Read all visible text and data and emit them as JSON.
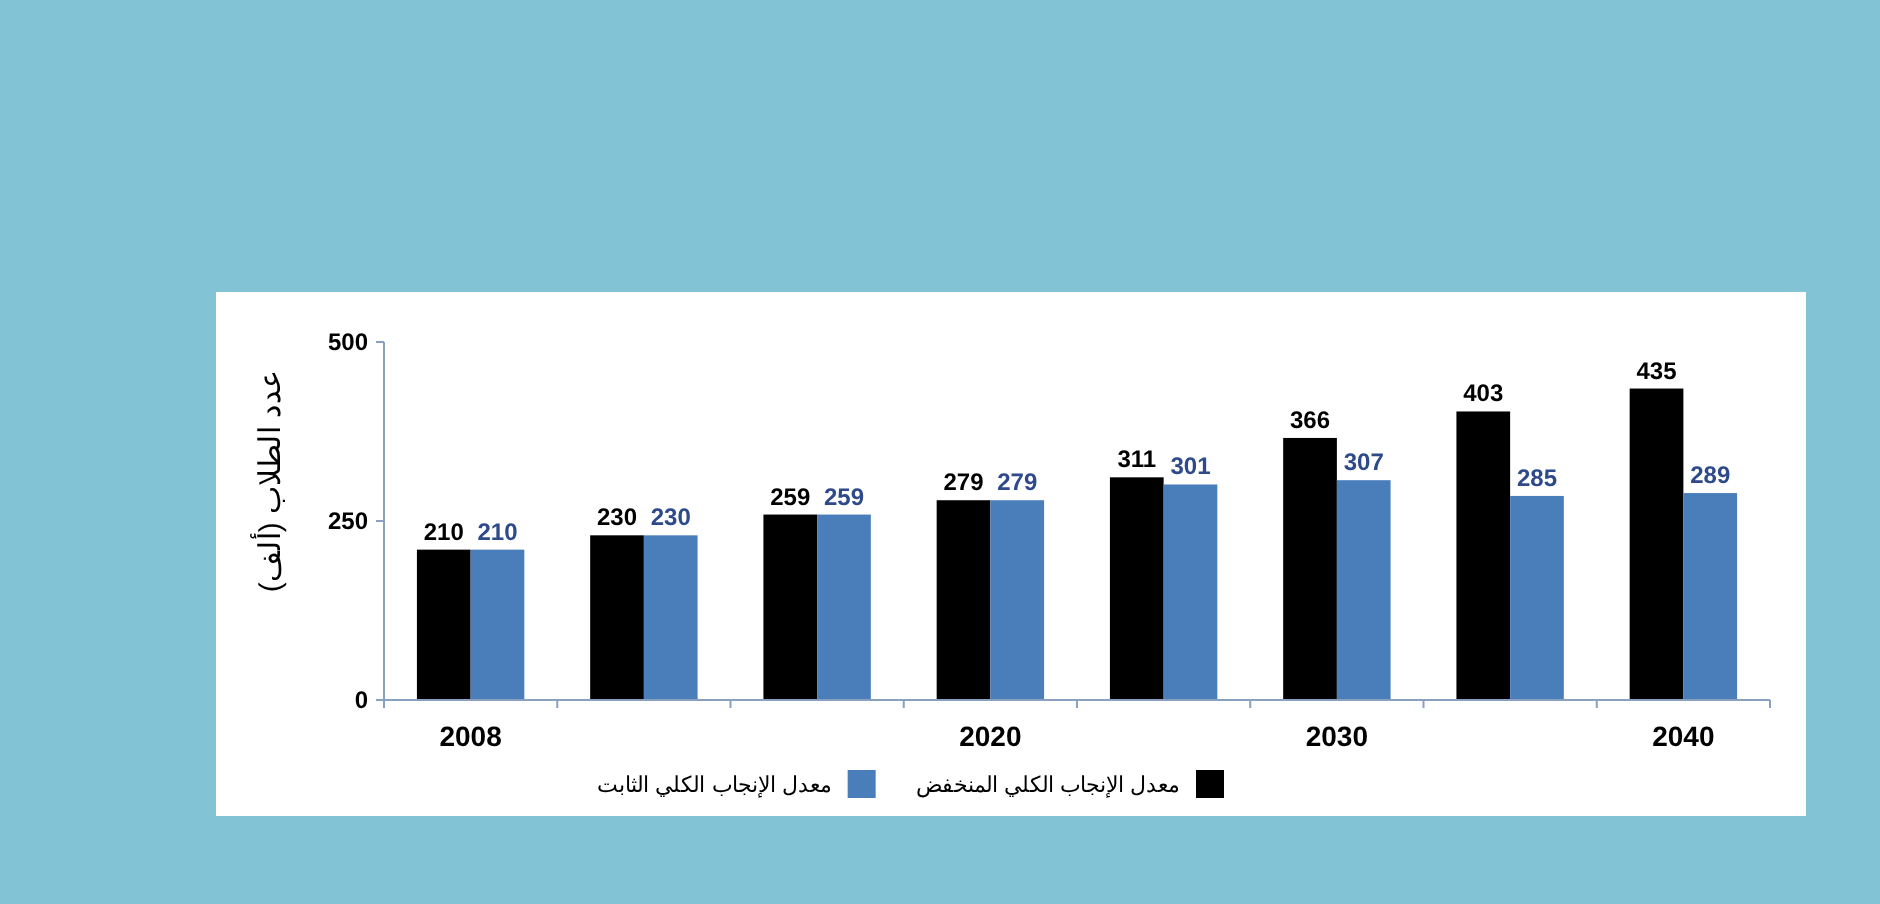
{
  "chart_data": {
    "type": "bar",
    "ylabel": "عدد الطلاب (ألف)",
    "categories": [
      "2008",
      null,
      null,
      "2020",
      null,
      "2030",
      null,
      "2040"
    ],
    "series": [
      {
        "name": "معدل الإنجاب الكلي المنخفض",
        "color": "#000000",
        "values": [
          210,
          230,
          259,
          279,
          311,
          366,
          403,
          435
        ]
      },
      {
        "name": "معدل الإنجاب الكلي الثابت",
        "color": "#4a7ebb",
        "values": [
          210,
          230,
          259,
          279,
          301,
          307,
          285,
          289
        ]
      }
    ],
    "ylim": [
      0,
      500
    ],
    "yticks": [
      0,
      250,
      500
    ],
    "data_labels": true,
    "legend": "bottom",
    "grid": false
  }
}
